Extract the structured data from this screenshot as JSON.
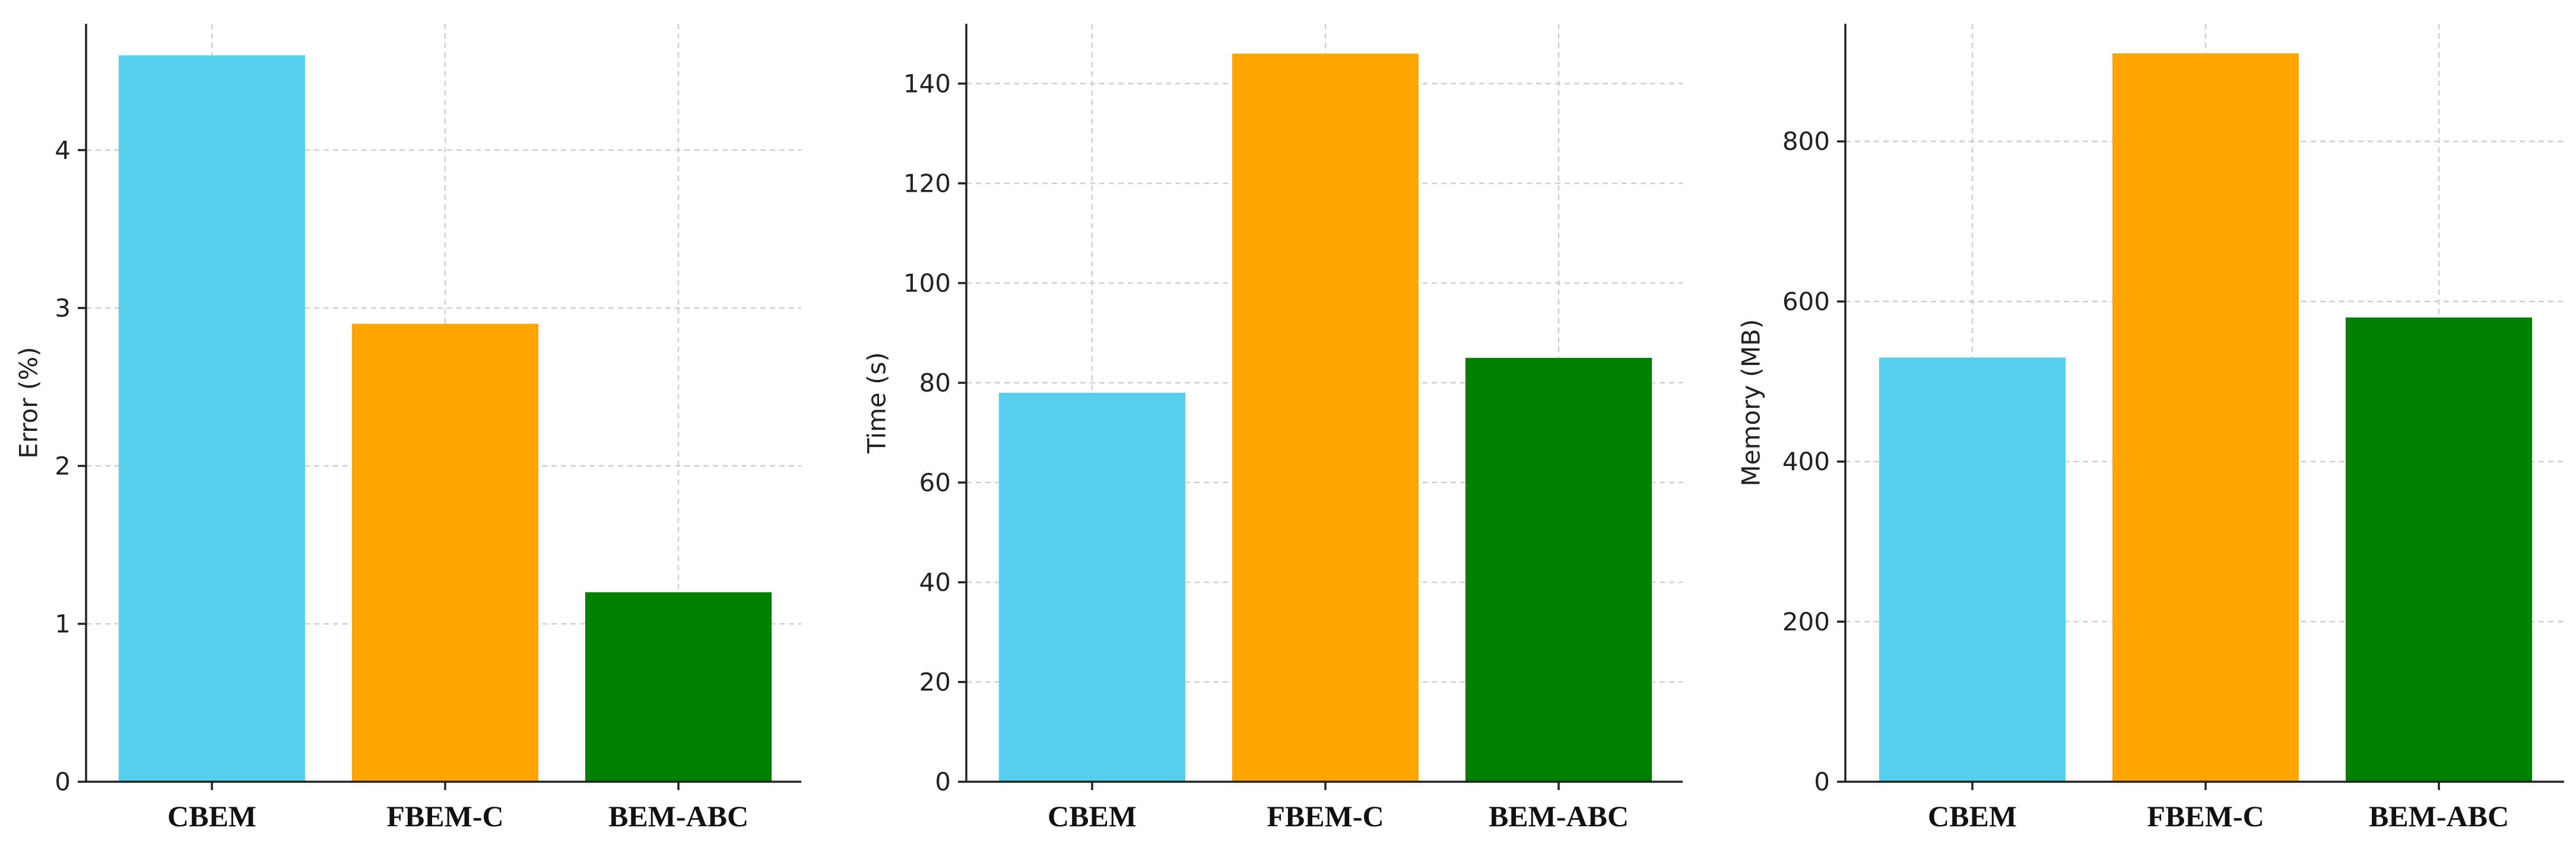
{
  "colors": {
    "CBEM": "#57CEEC",
    "FBEM-C": "#FFA500",
    "BEM-ABC": "#008000"
  },
  "chart_data": [
    {
      "type": "bar",
      "categories": [
        "CBEM",
        "FBEM-C",
        "BEM-ABC"
      ],
      "values": [
        4.6,
        2.9,
        1.2
      ],
      "title": "",
      "xlabel": "",
      "ylabel": "Error (%)",
      "ylim": [
        0,
        4.8
      ],
      "yticks": [
        0,
        1,
        2,
        3,
        4
      ],
      "grid": true
    },
    {
      "type": "bar",
      "categories": [
        "CBEM",
        "FBEM-C",
        "BEM-ABC"
      ],
      "values": [
        78,
        146,
        85
      ],
      "title": "",
      "xlabel": "",
      "ylabel": "Time (s)",
      "ylim": [
        0,
        152
      ],
      "yticks": [
        0,
        20,
        40,
        60,
        80,
        100,
        120,
        140
      ],
      "grid": true
    },
    {
      "type": "bar",
      "categories": [
        "CBEM",
        "FBEM-C",
        "BEM-ABC"
      ],
      "values": [
        530,
        910,
        580
      ],
      "title": "",
      "xlabel": "",
      "ylabel": "Memory (MB)",
      "ylim": [
        0,
        947
      ],
      "yticks": [
        0,
        200,
        400,
        600,
        800
      ],
      "grid": true
    }
  ]
}
